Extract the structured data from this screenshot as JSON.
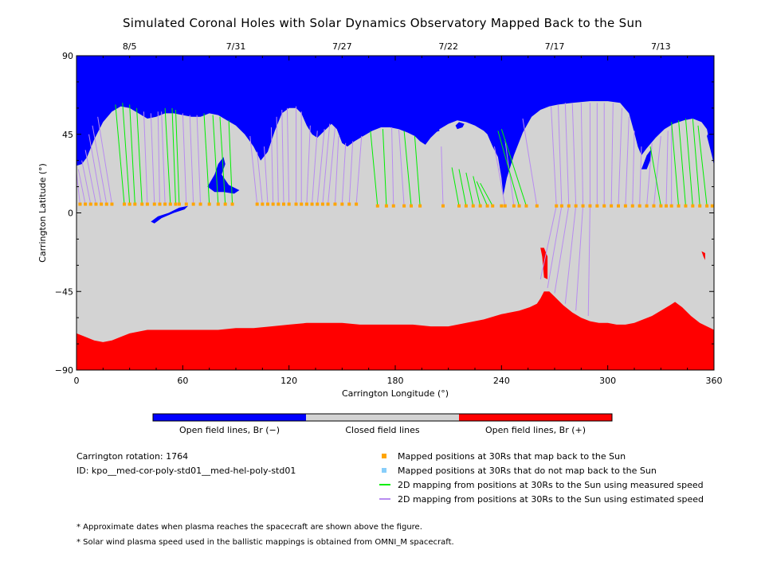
{
  "title": "Simulated Coronal Holes with Solar Dynamics Observatory Mapped Back to the Sun",
  "chart_data": {
    "type": "map",
    "xlabel": "Carrington Longitude (°)",
    "ylabel": "Carrington Latitude (°)",
    "xlim": [
      0,
      360
    ],
    "ylim": [
      -90,
      90
    ],
    "x_ticks": [
      0,
      60,
      120,
      180,
      240,
      300,
      360
    ],
    "y_ticks": [
      -90,
      -45,
      0,
      45,
      90
    ],
    "top_date_ticks": [
      {
        "label": "8/5",
        "lon": 30
      },
      {
        "label": "7/31",
        "lon": 90
      },
      {
        "label": "7/27",
        "lon": 150
      },
      {
        "label": "7/22",
        "lon": 210
      },
      {
        "label": "7/17",
        "lon": 270
      },
      {
        "label": "7/13",
        "lon": 330
      }
    ],
    "colorbar": [
      {
        "label": "Open field lines, Br (−)",
        "color": "#0000ff"
      },
      {
        "label": "Closed field lines",
        "color": "#d3d3d3"
      },
      {
        "label": "Open field lines, Br (+)",
        "color": "#ff0000"
      }
    ],
    "north_boundary": [
      [
        0,
        27
      ],
      [
        3,
        28
      ],
      [
        6,
        32
      ],
      [
        10,
        42
      ],
      [
        15,
        52
      ],
      [
        20,
        58
      ],
      [
        25,
        61
      ],
      [
        30,
        60
      ],
      [
        35,
        57
      ],
      [
        40,
        54
      ],
      [
        45,
        55
      ],
      [
        50,
        57
      ],
      [
        55,
        57
      ],
      [
        60,
        56
      ],
      [
        65,
        55
      ],
      [
        70,
        55
      ],
      [
        75,
        57
      ],
      [
        80,
        56
      ],
      [
        85,
        53
      ],
      [
        90,
        50
      ],
      [
        95,
        45
      ],
      [
        100,
        38
      ],
      [
        104,
        30
      ],
      [
        108,
        35
      ],
      [
        112,
        47
      ],
      [
        116,
        57
      ],
      [
        120,
        60
      ],
      [
        124,
        60
      ],
      [
        127,
        57
      ],
      [
        130,
        50
      ],
      [
        133,
        45
      ],
      [
        136,
        43
      ],
      [
        140,
        47
      ],
      [
        144,
        51
      ],
      [
        147,
        48
      ],
      [
        150,
        40
      ],
      [
        153,
        38
      ],
      [
        157,
        41
      ],
      [
        162,
        44
      ],
      [
        167,
        47
      ],
      [
        172,
        49
      ],
      [
        177,
        49
      ],
      [
        182,
        48
      ],
      [
        187,
        46
      ],
      [
        191,
        44
      ],
      [
        194,
        41
      ],
      [
        197,
        39
      ],
      [
        200,
        43
      ],
      [
        205,
        48
      ],
      [
        210,
        51
      ],
      [
        215,
        53
      ],
      [
        220,
        52
      ],
      [
        225,
        50
      ],
      [
        230,
        47
      ],
      [
        232,
        45
      ],
      [
        235,
        38
      ],
      [
        238,
        32
      ],
      [
        240,
        20
      ],
      [
        241,
        10
      ],
      [
        243,
        20
      ],
      [
        247,
        33
      ],
      [
        252,
        46
      ],
      [
        257,
        55
      ],
      [
        262,
        59
      ],
      [
        267,
        61
      ],
      [
        272,
        62
      ],
      [
        280,
        63
      ],
      [
        290,
        64
      ],
      [
        300,
        64
      ],
      [
        307,
        63
      ],
      [
        312,
        57
      ],
      [
        315,
        46
      ],
      [
        317,
        38
      ],
      [
        319,
        33
      ],
      [
        322,
        37
      ],
      [
        327,
        43
      ],
      [
        332,
        48
      ],
      [
        337,
        51
      ],
      [
        343,
        53
      ],
      [
        348,
        54
      ],
      [
        353,
        52
      ],
      [
        356,
        48
      ],
      [
        358,
        38
      ],
      [
        360,
        27
      ]
    ],
    "south_boundary": [
      [
        0,
        -69
      ],
      [
        5,
        -71
      ],
      [
        10,
        -73
      ],
      [
        15,
        -74
      ],
      [
        20,
        -73
      ],
      [
        25,
        -71
      ],
      [
        30,
        -69
      ],
      [
        40,
        -67
      ],
      [
        50,
        -67
      ],
      [
        60,
        -67
      ],
      [
        70,
        -67
      ],
      [
        80,
        -67
      ],
      [
        90,
        -66
      ],
      [
        100,
        -66
      ],
      [
        110,
        -65
      ],
      [
        120,
        -64
      ],
      [
        130,
        -63
      ],
      [
        140,
        -63
      ],
      [
        150,
        -63
      ],
      [
        160,
        -64
      ],
      [
        170,
        -64
      ],
      [
        180,
        -64
      ],
      [
        190,
        -64
      ],
      [
        200,
        -65
      ],
      [
        210,
        -65
      ],
      [
        220,
        -63
      ],
      [
        230,
        -61
      ],
      [
        240,
        -58
      ],
      [
        250,
        -56
      ],
      [
        256,
        -54
      ],
      [
        260,
        -52
      ],
      [
        262,
        -49
      ],
      [
        264,
        -45
      ],
      [
        267,
        -45
      ],
      [
        270,
        -48
      ],
      [
        275,
        -53
      ],
      [
        280,
        -57
      ],
      [
        285,
        -60
      ],
      [
        290,
        -62
      ],
      [
        295,
        -63
      ],
      [
        300,
        -63
      ],
      [
        305,
        -64
      ],
      [
        310,
        -64
      ],
      [
        315,
        -63
      ],
      [
        320,
        -61
      ],
      [
        325,
        -59
      ],
      [
        330,
        -56
      ],
      [
        335,
        -53
      ],
      [
        338,
        -51
      ],
      [
        342,
        -54
      ],
      [
        347,
        -59
      ],
      [
        352,
        -63
      ],
      [
        356,
        -65
      ],
      [
        360,
        -67
      ]
    ],
    "blue_islands": [
      [
        [
          74,
          15
        ],
        [
          78,
          22
        ],
        [
          80,
          28
        ],
        [
          83,
          32
        ],
        [
          84,
          28
        ],
        [
          82,
          22
        ],
        [
          86,
          16
        ],
        [
          92,
          13
        ],
        [
          89,
          11
        ],
        [
          83,
          12
        ],
        [
          78,
          12
        ]
      ],
      [
        [
          42,
          -5
        ],
        [
          46,
          -2
        ],
        [
          52,
          0
        ],
        [
          58,
          3
        ],
        [
          63,
          4
        ],
        [
          61,
          2
        ],
        [
          55,
          0
        ],
        [
          48,
          -3
        ],
        [
          44,
          -6
        ]
      ],
      [
        [
          199,
          48
        ],
        [
          201,
          51
        ],
        [
          204,
          50
        ],
        [
          205,
          47
        ],
        [
          202,
          46
        ]
      ],
      [
        [
          214,
          50
        ],
        [
          216,
          52
        ],
        [
          219,
          51
        ],
        [
          218,
          49
        ],
        [
          215,
          48
        ]
      ],
      [
        [
          319,
          25
        ],
        [
          322,
          33
        ],
        [
          325,
          37
        ],
        [
          324,
          30
        ],
        [
          322,
          25
        ]
      ],
      [
        [
          356,
          44
        ],
        [
          359,
          50
        ],
        [
          360,
          44
        ],
        [
          360,
          28
        ],
        [
          358,
          36
        ]
      ]
    ],
    "red_islands": [
      [
        [
          262,
          -20
        ],
        [
          263,
          -25
        ],
        [
          264,
          -37
        ],
        [
          266,
          -38
        ],
        [
          266,
          -25
        ],
        [
          264,
          -20
        ]
      ],
      [
        [
          353,
          -22
        ],
        [
          354,
          -25
        ],
        [
          355,
          -27
        ],
        [
          355,
          -23
        ]
      ]
    ],
    "mapped_points_lon": [
      2,
      5,
      8,
      11,
      14,
      17,
      20,
      27,
      30,
      33,
      37,
      40,
      44,
      47,
      50,
      53,
      56,
      58,
      62,
      66,
      70,
      75,
      80,
      84,
      88,
      102,
      105,
      108,
      111,
      114,
      117,
      120,
      124,
      127,
      130,
      133,
      136,
      139,
      142,
      146,
      150,
      154,
      158,
      170,
      175,
      179,
      185,
      189,
      194,
      207,
      216,
      220,
      224,
      228,
      232,
      235,
      240,
      242,
      247,
      250,
      254,
      260,
      271,
      274,
      278,
      282,
      286,
      290,
      294,
      298,
      302,
      306,
      310,
      314,
      318,
      322,
      326,
      330,
      333,
      336,
      340,
      344,
      348,
      352,
      356,
      359
    ],
    "mapped_points_lat": [
      5,
      5,
      5,
      5,
      5,
      5,
      5,
      5,
      5,
      5,
      5,
      5,
      5,
      5,
      5,
      5,
      5,
      5,
      5,
      5,
      5,
      5,
      5,
      5,
      5,
      5,
      5,
      5,
      5,
      5,
      5,
      5,
      5,
      5,
      5,
      5,
      5,
      5,
      5,
      5,
      5,
      5,
      5,
      4,
      4,
      4,
      4,
      4,
      4,
      4,
      4,
      4,
      4,
      4,
      4,
      4,
      4,
      4,
      4,
      4,
      4,
      4,
      4,
      4,
      4,
      4,
      4,
      4,
      4,
      4,
      4,
      4,
      4,
      4,
      4,
      4,
      4,
      4,
      4,
      4,
      4,
      4,
      4,
      4,
      4,
      4
    ],
    "green_lines": [
      [
        27,
        5,
        22,
        62
      ],
      [
        30,
        5,
        26,
        63
      ],
      [
        33,
        5,
        30,
        62
      ],
      [
        37,
        5,
        34,
        60
      ],
      [
        53,
        5,
        50,
        60
      ],
      [
        56,
        5,
        54,
        60
      ],
      [
        58,
        5,
        56,
        59
      ],
      [
        75,
        5,
        72,
        57
      ],
      [
        80,
        5,
        77,
        56
      ],
      [
        84,
        5,
        81,
        55
      ],
      [
        88,
        5,
        86,
        53
      ],
      [
        170,
        4,
        166,
        47
      ],
      [
        175,
        4,
        173,
        48
      ],
      [
        189,
        4,
        185,
        47
      ],
      [
        194,
        4,
        191,
        44
      ],
      [
        216,
        4,
        212,
        26
      ],
      [
        220,
        4,
        216,
        25
      ],
      [
        224,
        4,
        220,
        23
      ],
      [
        228,
        4,
        224,
        21
      ],
      [
        232,
        4,
        226,
        18
      ],
      [
        235,
        4,
        228,
        17
      ],
      [
        250,
        4,
        238,
        47
      ],
      [
        254,
        4,
        240,
        48
      ],
      [
        330,
        4,
        324,
        38
      ],
      [
        340,
        4,
        336,
        52
      ],
      [
        344,
        4,
        340,
        53
      ],
      [
        348,
        4,
        344,
        54
      ],
      [
        352,
        4,
        348,
        54
      ],
      [
        356,
        4,
        351,
        50
      ]
    ],
    "purple_lines": [
      [
        2,
        5,
        0,
        23
      ],
      [
        5,
        5,
        1,
        25
      ],
      [
        8,
        5,
        3,
        30
      ],
      [
        11,
        5,
        5,
        36
      ],
      [
        14,
        5,
        7,
        45
      ],
      [
        17,
        5,
        9,
        50
      ],
      [
        20,
        5,
        12,
        55
      ],
      [
        40,
        5,
        38,
        58
      ],
      [
        44,
        5,
        42,
        57
      ],
      [
        47,
        5,
        46,
        58
      ],
      [
        50,
        5,
        48,
        58
      ],
      [
        62,
        5,
        60,
        57
      ],
      [
        66,
        5,
        64,
        56
      ],
      [
        70,
        5,
        68,
        56
      ],
      [
        102,
        5,
        98,
        44
      ],
      [
        105,
        5,
        102,
        35
      ],
      [
        108,
        5,
        106,
        38
      ],
      [
        111,
        5,
        110,
        49
      ],
      [
        114,
        5,
        113,
        55
      ],
      [
        117,
        5,
        116,
        59
      ],
      [
        120,
        5,
        119,
        60
      ],
      [
        124,
        5,
        124,
        61
      ],
      [
        127,
        5,
        127,
        58
      ],
      [
        130,
        5,
        132,
        50
      ],
      [
        133,
        5,
        136,
        47
      ],
      [
        136,
        5,
        140,
        48
      ],
      [
        139,
        5,
        143,
        51
      ],
      [
        142,
        5,
        146,
        49
      ],
      [
        146,
        5,
        148,
        44
      ],
      [
        150,
        5,
        152,
        40
      ],
      [
        154,
        5,
        156,
        41
      ],
      [
        158,
        5,
        161,
        44
      ],
      [
        179,
        4,
        178,
        49
      ],
      [
        185,
        4,
        182,
        48
      ],
      [
        207,
        4,
        206,
        38
      ],
      [
        242,
        4,
        236,
        38
      ],
      [
        247,
        4,
        242,
        42
      ],
      [
        260,
        4,
        252,
        54
      ],
      [
        271,
        4,
        268,
        61
      ],
      [
        274,
        4,
        272,
        62
      ],
      [
        278,
        4,
        276,
        63
      ],
      [
        282,
        4,
        280,
        63
      ],
      [
        286,
        4,
        285,
        63
      ],
      [
        290,
        4,
        290,
        63
      ],
      [
        294,
        4,
        294,
        63
      ],
      [
        298,
        4,
        298,
        63
      ],
      [
        302,
        4,
        303,
        63
      ],
      [
        306,
        4,
        308,
        60
      ],
      [
        310,
        4,
        312,
        55
      ],
      [
        314,
        4,
        315,
        47
      ],
      [
        318,
        4,
        319,
        38
      ],
      [
        322,
        4,
        325,
        40
      ],
      [
        326,
        4,
        330,
        44
      ],
      [
        333,
        4,
        334,
        47
      ],
      [
        336,
        4,
        336,
        50
      ],
      [
        271,
        4,
        262,
        -38
      ],
      [
        274,
        4,
        266,
        -43
      ],
      [
        278,
        4,
        270,
        -46
      ],
      [
        282,
        4,
        276,
        -52
      ],
      [
        286,
        4,
        282,
        -56
      ],
      [
        290,
        4,
        289,
        -59
      ]
    ]
  },
  "legend": {
    "rotation_label": "Carrington rotation: 1764",
    "id_label": "ID: kpo__med-cor-poly-std01__med-hel-poly-std01",
    "items": [
      {
        "label": "Mapped positions at 30Rs that map back to the Sun",
        "color": "#ffa500",
        "kind": "square"
      },
      {
        "label": "Mapped positions at 30Rs that do not map back to the Sun",
        "color": "#87cefa",
        "kind": "square"
      },
      {
        "label": "2D mapping from positions at 30Rs to the Sun using measured speed",
        "color": "#00ee00",
        "kind": "line"
      },
      {
        "label": "2D mapping from positions at 30Rs to the Sun using estimated speed",
        "color": "#b88cf0",
        "kind": "line"
      }
    ]
  },
  "notes": [
    "* Approximate dates when plasma reaches the spacecraft are shown above the figure.",
    "* Solar wind plasma speed used in the ballistic mappings is obtained from OMNI_M spacecraft."
  ],
  "colors": {
    "neg_open": "#0000ff",
    "closed": "#d3d3d3",
    "pos_open": "#ff0000",
    "mapped": "#ffa500",
    "measured": "#00ee00",
    "estimated": "#b88cf0"
  }
}
